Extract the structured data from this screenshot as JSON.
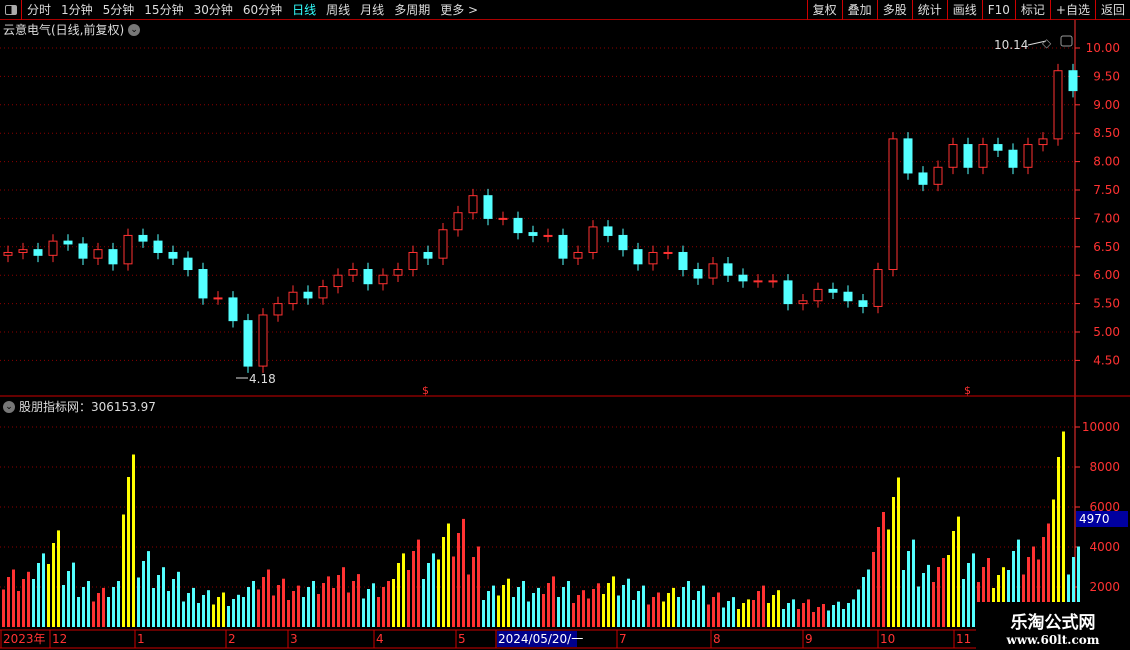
{
  "toolbar": {
    "periods": [
      "分时",
      "1分钟",
      "5分钟",
      "15分钟",
      "30分钟",
      "60分钟",
      "日线",
      "周线",
      "月线",
      "多周期",
      "更多 >"
    ],
    "active": "日线",
    "right_buttons": [
      "复权",
      "叠加",
      "多股",
      "统计",
      "画线",
      "F10",
      "标记",
      "+自选",
      "返回"
    ]
  },
  "stock_title": "云意电气(日线,前复权)",
  "indicator_title": "股朋指标网：306153.97",
  "colors": {
    "up": "#ff3232",
    "down": "#54ffff",
    "yellow": "#ffff00",
    "grid": "#8b0000",
    "axis": "#ff3232"
  },
  "annotations": {
    "high": "10.14",
    "low": "4.18"
  },
  "current_value_label": "4970",
  "watermark": {
    "line1": "乐淘公式网",
    "line2": "www.60lt.com"
  },
  "chart_data": [
    {
      "type": "candlestick",
      "yticks": [
        "10.00",
        "9.50",
        "9.00",
        "8.50",
        "8.00",
        "7.50",
        "7.00",
        "6.50",
        "6.00",
        "5.50",
        "5.00",
        "4.50"
      ],
      "ylim": [
        4.2,
        10.3
      ],
      "closes": [
        6.4,
        6.45,
        6.35,
        6.6,
        6.55,
        6.3,
        6.45,
        6.2,
        6.7,
        6.6,
        6.4,
        6.3,
        6.1,
        5.6,
        5.6,
        5.2,
        4.4,
        5.3,
        5.5,
        5.7,
        5.6,
        5.8,
        6.0,
        6.1,
        5.85,
        6.0,
        6.1,
        6.4,
        6.3,
        6.8,
        7.1,
        7.4,
        7.0,
        7.0,
        6.75,
        6.7,
        6.7,
        6.3,
        6.4,
        6.85,
        6.7,
        6.45,
        6.2,
        6.4,
        6.4,
        6.1,
        5.95,
        6.2,
        6.0,
        5.9,
        5.9,
        5.9,
        5.5,
        5.55,
        5.75,
        5.7,
        5.55,
        5.45,
        6.1,
        8.4,
        7.8,
        7.6,
        7.9,
        8.3,
        7.9,
        8.3,
        8.2,
        7.9,
        8.3,
        8.4,
        9.6,
        9.25
      ]
    },
    {
      "type": "bar",
      "yticks": [
        "10000",
        "8000",
        "6000",
        "4000",
        "2000"
      ],
      "ylim": [
        0,
        11000
      ],
      "values": [
        2500,
        2400,
        3200,
        4200,
        2800,
        2000,
        1700,
        2000,
        7500,
        3300,
        2600,
        2400,
        1700,
        1600,
        1500,
        1400,
        2000,
        2500,
        2100,
        1800,
        2000,
        2200,
        2600,
        2300,
        1900,
        2000,
        3200,
        3800,
        3200,
        4500,
        4700,
        3500,
        1800,
        2100,
        2000,
        1700,
        2200,
        2000,
        1600,
        1900,
        2200,
        2100,
        1800,
        1500,
        1700,
        2000,
        1800,
        1500,
        1300,
        1200,
        1800,
        1600,
        1200,
        1200,
        1000,
        1100,
        1200,
        2500,
        5000,
        6500,
        3800,
        2700,
        3000,
        4800,
        3200,
        3000,
        2600,
        3800,
        3500,
        4500,
        8500,
        3500
      ],
      "yellow_indices": [
        3,
        8,
        14,
        26,
        29,
        33,
        40,
        44,
        49,
        51,
        59,
        63,
        66,
        70
      ]
    }
  ],
  "date_axis": [
    "2023年",
    "12",
    "1",
    "2",
    "3",
    "4",
    "5",
    "2024/05/20/一",
    "7",
    "8",
    "9",
    "10",
    "11"
  ]
}
